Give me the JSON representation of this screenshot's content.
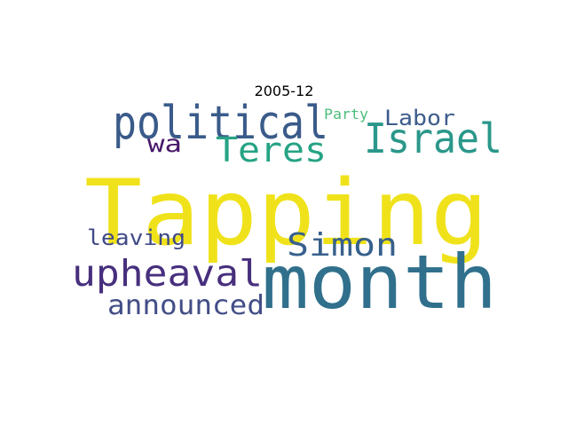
{
  "title": "2005-12",
  "words": [
    {
      "text": "Tapping",
      "color": "#f0e21a"
    },
    {
      "text": "month",
      "color": "#30708c"
    },
    {
      "text": "political",
      "color": "#3a5b8a"
    },
    {
      "text": "Israel",
      "color": "#2a978a"
    },
    {
      "text": "Teres",
      "color": "#26a384"
    },
    {
      "text": "Simon",
      "color": "#37608c"
    },
    {
      "text": "upheaval",
      "color": "#472f7d"
    },
    {
      "text": "announced",
      "color": "#434e87"
    },
    {
      "text": "leaving",
      "color": "#404a88"
    },
    {
      "text": "Labor",
      "color": "#3d5c8b"
    },
    {
      "text": "wa",
      "color": "#48186a"
    },
    {
      "text": "Party",
      "color": "#4bbe7a"
    }
  ]
}
